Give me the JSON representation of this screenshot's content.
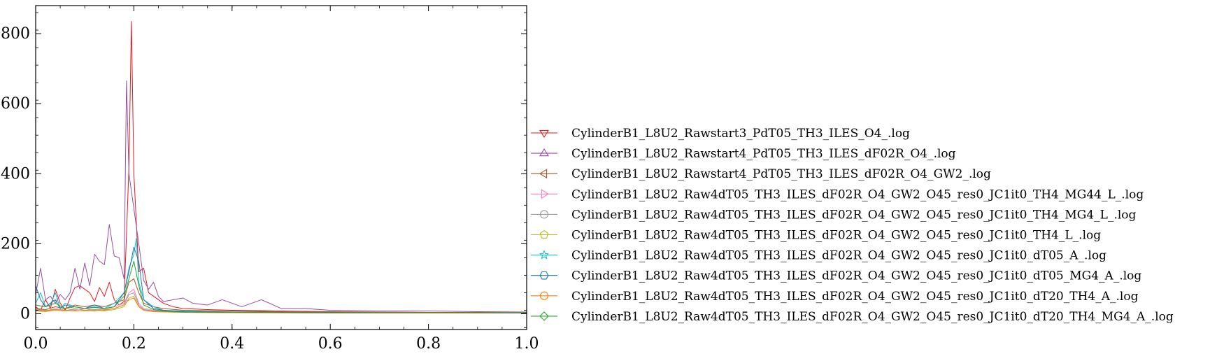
{
  "chart_data": {
    "type": "line",
    "title": "",
    "xlabel": "",
    "ylabel": "",
    "xlim": [
      0.0,
      1.0
    ],
    "ylim": [
      -45,
      880
    ],
    "x_ticks": [
      0.0,
      0.2,
      0.4,
      0.6,
      0.8,
      1.0
    ],
    "x_tick_labels": [
      "0.0",
      "0.2",
      "0.4",
      "0.6",
      "0.8",
      "1.0"
    ],
    "y_ticks": [
      0,
      200,
      400,
      600,
      800
    ],
    "y_tick_labels": [
      "0",
      "200",
      "400",
      "600",
      "800"
    ],
    "grid": false,
    "legend_position": "outside right",
    "series": [
      {
        "name": "CylinderB1_L8U2_Rawstart3_PdT05_TH3_ILES_O4_.log",
        "color": "#e41a1c",
        "marker": "triangle-down",
        "points": [
          [
            0.0,
            20
          ],
          [
            0.01,
            10
          ],
          [
            0.02,
            40
          ],
          [
            0.03,
            15
          ],
          [
            0.04,
            70
          ],
          [
            0.05,
            30
          ],
          [
            0.06,
            10
          ],
          [
            0.07,
            45
          ],
          [
            0.08,
            75
          ],
          [
            0.09,
            80
          ],
          [
            0.1,
            70
          ],
          [
            0.11,
            60
          ],
          [
            0.12,
            35
          ],
          [
            0.13,
            75
          ],
          [
            0.14,
            50
          ],
          [
            0.15,
            90
          ],
          [
            0.16,
            40
          ],
          [
            0.17,
            25
          ],
          [
            0.18,
            35
          ],
          [
            0.19,
            420
          ],
          [
            0.195,
            835
          ],
          [
            0.2,
            400
          ],
          [
            0.21,
            120
          ],
          [
            0.22,
            130
          ],
          [
            0.23,
            60
          ],
          [
            0.24,
            50
          ],
          [
            0.25,
            40
          ],
          [
            0.26,
            30
          ],
          [
            0.28,
            20
          ],
          [
            0.3,
            15
          ],
          [
            0.35,
            12
          ],
          [
            0.4,
            10
          ],
          [
            0.5,
            8
          ],
          [
            0.6,
            6
          ],
          [
            0.7,
            5
          ],
          [
            0.8,
            4
          ],
          [
            0.9,
            4
          ],
          [
            1.0,
            3
          ]
        ]
      },
      {
        "name": "CylinderB1_L8U2_Rawstart4_PdT05_TH3_ILES_dF02R_O4_.log",
        "color": "#984ea3",
        "marker": "triangle-up",
        "points": [
          [
            0.0,
            55
          ],
          [
            0.01,
            130
          ],
          [
            0.02,
            40
          ],
          [
            0.03,
            50
          ],
          [
            0.04,
            30
          ],
          [
            0.05,
            55
          ],
          [
            0.06,
            40
          ],
          [
            0.07,
            60
          ],
          [
            0.08,
            130
          ],
          [
            0.09,
            70
          ],
          [
            0.1,
            145
          ],
          [
            0.11,
            80
          ],
          [
            0.12,
            170
          ],
          [
            0.13,
            150
          ],
          [
            0.14,
            140
          ],
          [
            0.15,
            255
          ],
          [
            0.16,
            165
          ],
          [
            0.17,
            160
          ],
          [
            0.18,
            100
          ],
          [
            0.185,
            665
          ],
          [
            0.19,
            400
          ],
          [
            0.2,
            300
          ],
          [
            0.21,
            200
          ],
          [
            0.22,
            95
          ],
          [
            0.23,
            70
          ],
          [
            0.24,
            90
          ],
          [
            0.25,
            50
          ],
          [
            0.26,
            35
          ],
          [
            0.28,
            40
          ],
          [
            0.3,
            45
          ],
          [
            0.32,
            30
          ],
          [
            0.35,
            25
          ],
          [
            0.38,
            40
          ],
          [
            0.4,
            30
          ],
          [
            0.42,
            20
          ],
          [
            0.46,
            40
          ],
          [
            0.5,
            15
          ],
          [
            0.55,
            15
          ],
          [
            0.6,
            10
          ],
          [
            0.7,
            8
          ],
          [
            0.8,
            8
          ],
          [
            0.9,
            6
          ],
          [
            1.0,
            5
          ]
        ]
      },
      {
        "name": "CylinderB1_L8U2_Rawstart4_PdT05_TH3_ILES_dF02R_O4_GW2_.log",
        "color": "#a65628",
        "marker": "triangle-left",
        "points": [
          [
            0.0,
            15
          ],
          [
            0.02,
            12
          ],
          [
            0.04,
            20
          ],
          [
            0.06,
            15
          ],
          [
            0.08,
            25
          ],
          [
            0.1,
            20
          ],
          [
            0.12,
            25
          ],
          [
            0.14,
            20
          ],
          [
            0.16,
            30
          ],
          [
            0.18,
            40
          ],
          [
            0.19,
            90
          ],
          [
            0.2,
            100
          ],
          [
            0.21,
            60
          ],
          [
            0.22,
            30
          ],
          [
            0.24,
            20
          ],
          [
            0.26,
            15
          ],
          [
            0.3,
            10
          ],
          [
            0.4,
            8
          ],
          [
            0.5,
            6
          ],
          [
            0.6,
            5
          ],
          [
            0.8,
            4
          ],
          [
            1.0,
            3
          ]
        ]
      },
      {
        "name": "CylinderB1_L8U2_Raw4dT05_TH3_ILES_dF02R_O4_GW2_O45_res0_JC1it0_TH4_MG44_L_.log",
        "color": "#f781bf",
        "marker": "triangle-right",
        "points": [
          [
            0.0,
            10
          ],
          [
            0.02,
            8
          ],
          [
            0.04,
            15
          ],
          [
            0.06,
            10
          ],
          [
            0.08,
            12
          ],
          [
            0.1,
            15
          ],
          [
            0.12,
            10
          ],
          [
            0.14,
            15
          ],
          [
            0.16,
            20
          ],
          [
            0.18,
            30
          ],
          [
            0.19,
            60
          ],
          [
            0.2,
            70
          ],
          [
            0.21,
            30
          ],
          [
            0.22,
            15
          ],
          [
            0.24,
            10
          ],
          [
            0.3,
            6
          ],
          [
            0.4,
            5
          ],
          [
            0.6,
            4
          ],
          [
            0.8,
            3
          ],
          [
            1.0,
            2
          ]
        ]
      },
      {
        "name": "CylinderB1_L8U2_Raw4dT05_TH3_ILES_dF02R_O4_GW2_O45_res0_JC1it0_TH4_MG4_L_.log",
        "color": "#999999",
        "marker": "circle",
        "points": [
          [
            0.0,
            12
          ],
          [
            0.02,
            10
          ],
          [
            0.04,
            12
          ],
          [
            0.06,
            8
          ],
          [
            0.08,
            15
          ],
          [
            0.1,
            10
          ],
          [
            0.12,
            12
          ],
          [
            0.14,
            10
          ],
          [
            0.16,
            15
          ],
          [
            0.18,
            25
          ],
          [
            0.19,
            55
          ],
          [
            0.2,
            60
          ],
          [
            0.21,
            25
          ],
          [
            0.22,
            12
          ],
          [
            0.24,
            8
          ],
          [
            0.3,
            5
          ],
          [
            0.4,
            4
          ],
          [
            0.6,
            3
          ],
          [
            0.8,
            3
          ],
          [
            1.0,
            2
          ]
        ]
      },
      {
        "name": "CylinderB1_L8U2_Raw4dT05_TH3_ILES_dF02R_O4_GW2_O45_res0_JC1it0_TH4_L_.log",
        "color": "#bcbd22",
        "marker": "pentagon",
        "points": [
          [
            0.0,
            8
          ],
          [
            0.02,
            6
          ],
          [
            0.04,
            10
          ],
          [
            0.06,
            8
          ],
          [
            0.08,
            10
          ],
          [
            0.1,
            8
          ],
          [
            0.12,
            10
          ],
          [
            0.14,
            8
          ],
          [
            0.16,
            12
          ],
          [
            0.18,
            20
          ],
          [
            0.19,
            45
          ],
          [
            0.2,
            50
          ],
          [
            0.21,
            20
          ],
          [
            0.22,
            10
          ],
          [
            0.24,
            6
          ],
          [
            0.3,
            4
          ],
          [
            0.4,
            3
          ],
          [
            0.6,
            3
          ],
          [
            0.8,
            2
          ],
          [
            1.0,
            2
          ]
        ]
      },
      {
        "name": "CylinderB1_L8U2_Raw4dT05_TH3_ILES_dF02R_O4_GW2_O45_res0_JC1it0_dT05_A_.log",
        "color": "#17becf",
        "marker": "star",
        "points": [
          [
            0.0,
            30
          ],
          [
            0.01,
            60
          ],
          [
            0.02,
            20
          ],
          [
            0.03,
            25
          ],
          [
            0.04,
            60
          ],
          [
            0.05,
            15
          ],
          [
            0.06,
            30
          ],
          [
            0.08,
            20
          ],
          [
            0.1,
            15
          ],
          [
            0.12,
            20
          ],
          [
            0.14,
            15
          ],
          [
            0.16,
            30
          ],
          [
            0.18,
            60
          ],
          [
            0.19,
            130
          ],
          [
            0.2,
            170
          ],
          [
            0.205,
            215
          ],
          [
            0.21,
            90
          ],
          [
            0.22,
            40
          ],
          [
            0.24,
            20
          ],
          [
            0.26,
            10
          ],
          [
            0.3,
            8
          ],
          [
            0.4,
            5
          ],
          [
            0.6,
            4
          ],
          [
            0.8,
            3
          ],
          [
            1.0,
            2
          ]
        ]
      },
      {
        "name": "CylinderB1_L8U2_Raw4dT05_TH3_ILES_dF02R_O4_GW2_O45_res0_JC1it0_dT05_MG4_A_.log",
        "color": "#1f77b4",
        "marker": "hexagon",
        "points": [
          [
            0.0,
            80
          ],
          [
            0.01,
            40
          ],
          [
            0.02,
            20
          ],
          [
            0.03,
            30
          ],
          [
            0.04,
            40
          ],
          [
            0.05,
            15
          ],
          [
            0.06,
            25
          ],
          [
            0.08,
            20
          ],
          [
            0.1,
            15
          ],
          [
            0.12,
            25
          ],
          [
            0.14,
            15
          ],
          [
            0.16,
            20
          ],
          [
            0.18,
            60
          ],
          [
            0.19,
            120
          ],
          [
            0.2,
            190
          ],
          [
            0.21,
            150
          ],
          [
            0.22,
            40
          ],
          [
            0.24,
            15
          ],
          [
            0.26,
            10
          ],
          [
            0.3,
            6
          ],
          [
            0.4,
            5
          ],
          [
            0.6,
            4
          ],
          [
            0.8,
            3
          ],
          [
            1.0,
            2
          ]
        ]
      },
      {
        "name": "CylinderB1_L8U2_Raw4dT05_TH3_ILES_dF02R_O4_GW2_O45_res0_JC1it0_dT20_TH4_A_.log",
        "color": "#ff7f0e",
        "marker": "circle",
        "points": [
          [
            0.0,
            10
          ],
          [
            0.02,
            8
          ],
          [
            0.04,
            12
          ],
          [
            0.06,
            10
          ],
          [
            0.08,
            8
          ],
          [
            0.1,
            10
          ],
          [
            0.12,
            8
          ],
          [
            0.14,
            12
          ],
          [
            0.16,
            15
          ],
          [
            0.18,
            25
          ],
          [
            0.19,
            40
          ],
          [
            0.2,
            45
          ],
          [
            0.21,
            20
          ],
          [
            0.22,
            10
          ],
          [
            0.24,
            6
          ],
          [
            0.3,
            4
          ],
          [
            0.4,
            3
          ],
          [
            0.6,
            2
          ],
          [
            0.8,
            2
          ],
          [
            1.0,
            2
          ]
        ]
      },
      {
        "name": "CylinderB1_L8U2_Raw4dT05_TH3_ILES_dF02R_O4_GW2_O45_res0_JC1it0_dT20_TH4_MG4_A_.log",
        "color": "#2ca02c",
        "marker": "diamond",
        "points": [
          [
            0.0,
            25
          ],
          [
            0.02,
            20
          ],
          [
            0.04,
            30
          ],
          [
            0.06,
            15
          ],
          [
            0.08,
            20
          ],
          [
            0.1,
            15
          ],
          [
            0.12,
            18
          ],
          [
            0.14,
            15
          ],
          [
            0.16,
            20
          ],
          [
            0.18,
            50
          ],
          [
            0.19,
            100
          ],
          [
            0.2,
            150
          ],
          [
            0.21,
            80
          ],
          [
            0.22,
            25
          ],
          [
            0.24,
            12
          ],
          [
            0.26,
            8
          ],
          [
            0.3,
            5
          ],
          [
            0.4,
            4
          ],
          [
            0.6,
            3
          ],
          [
            0.8,
            3
          ],
          [
            1.0,
            2
          ]
        ]
      }
    ]
  }
}
